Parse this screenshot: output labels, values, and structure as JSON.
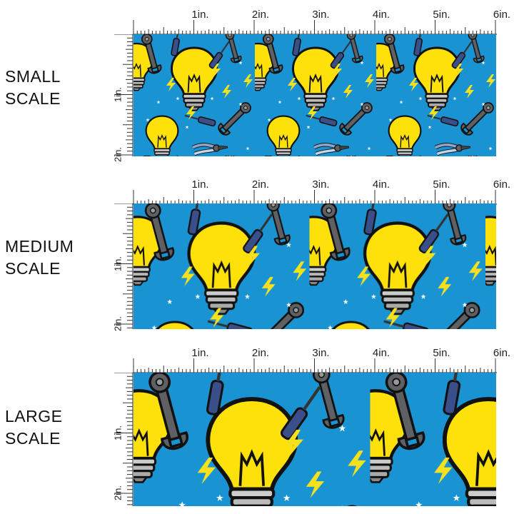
{
  "scales": [
    {
      "label_line1": "SMALL",
      "label_line2": "SCALE",
      "tile_scale": 1.0
    },
    {
      "label_line1": "MEDIUM",
      "label_line2": "SCALE",
      "tile_scale": 1.45
    },
    {
      "label_line1": "LARGE",
      "label_line2": "SCALE",
      "tile_scale": 1.95
    }
  ],
  "ruler": {
    "top_labels": [
      "1in.",
      "2in.",
      "3in.",
      "4in.",
      "5in.",
      "6in."
    ],
    "side_labels": [
      "1in.",
      "2in."
    ]
  },
  "colors": {
    "fabric_blue": "#1a93d3",
    "bulb_yellow": "#ffe10a",
    "wrench_gray": "#5e6063",
    "screwdriver_navy": "#3a4f8a",
    "bolt_yellow": "#f7e11c",
    "star_white": "#ffffff"
  },
  "pattern_motifs": [
    "light-bulb-icon",
    "wrench-icon",
    "screwdriver-icon",
    "lightning-bolt-icon",
    "star-icon",
    "pliers-icon"
  ]
}
